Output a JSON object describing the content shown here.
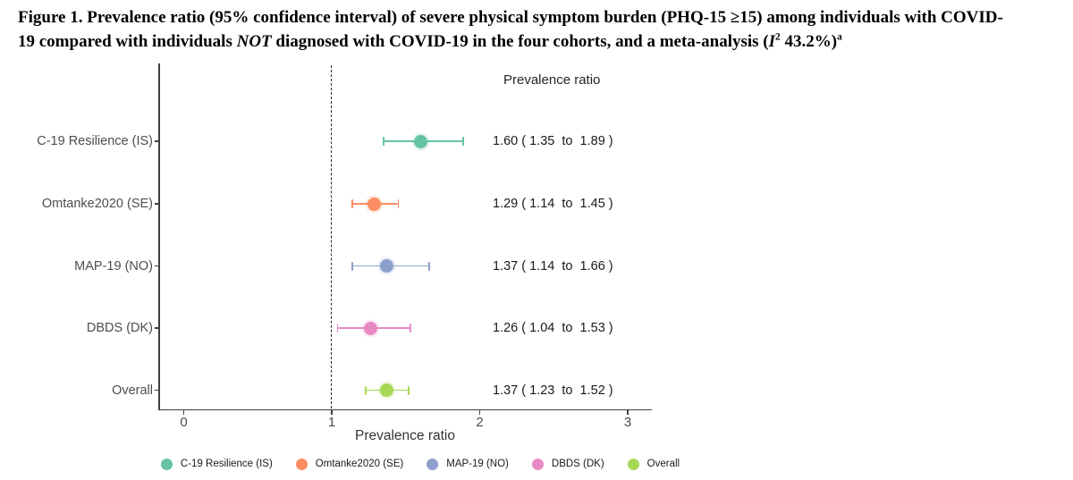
{
  "figure_title": {
    "segments": [
      {
        "text": "Figure 1. Prevalence ratio (95% confidence interval) of severe physical symptom burden (PHQ-15 ≥15) among individuals with COVID-"
      },
      {
        "br": true
      },
      {
        "text": "19 compared with individuals "
      },
      {
        "text": "NOT",
        "style": "italic"
      },
      {
        "text": " diagnosed with COVID-19 in the four cohorts, and a meta-analysis ("
      },
      {
        "text": "I",
        "style": "italic"
      },
      {
        "text": "2",
        "style": "sup"
      },
      {
        "text": " 43.2%)"
      },
      {
        "text": "a",
        "style": "sup"
      }
    ]
  },
  "chart_data": {
    "type": "forest",
    "orientation": "horizontal",
    "grid": false,
    "background": "#ffffff",
    "x_axis": {
      "label": "Prevalence ratio",
      "ticks": [
        {
          "value": 0,
          "label": "0"
        },
        {
          "value": 1,
          "label": "1"
        },
        {
          "value": 2,
          "label": "2"
        },
        {
          "value": 3,
          "label": "3"
        }
      ],
      "range": [
        -0.17,
        3.16
      ]
    },
    "reference_line_x": 1,
    "right_column_header": "Prevalence ratio",
    "rows": [
      {
        "label": "C-19 Resilience (IS)",
        "estimate": 1.6,
        "ci_low": 1.35,
        "ci_high": 1.89,
        "display": "1.60 ( 1.35  to  1.89 )",
        "color": "#66C2A5"
      },
      {
        "label": "Omtanke2020 (SE)",
        "estimate": 1.29,
        "ci_low": 1.14,
        "ci_high": 1.45,
        "display": "1.29 ( 1.14  to  1.45 )",
        "color": "#FC8D62"
      },
      {
        "label": "MAP-19 (NO)",
        "estimate": 1.37,
        "ci_low": 1.14,
        "ci_high": 1.66,
        "display": "1.37 ( 1.14  to  1.66 )",
        "color": "#8DA0CB"
      },
      {
        "label": "DBDS (DK)",
        "estimate": 1.26,
        "ci_low": 1.04,
        "ci_high": 1.53,
        "display": "1.26 ( 1.04  to  1.53 )",
        "color": "#E78AC3"
      },
      {
        "label": "Overall",
        "estimate": 1.37,
        "ci_low": 1.23,
        "ci_high": 1.52,
        "display": "1.37 ( 1.23  to  1.52 )",
        "color": "#A6D854"
      }
    ],
    "legend_position": "bottom",
    "legend": [
      {
        "label": "C-19 Resilience (IS)",
        "color": "#66C2A5"
      },
      {
        "label": "Omtanke2020 (SE)",
        "color": "#FC8D62"
      },
      {
        "label": "MAP-19 (NO)",
        "color": "#8DA0CB"
      },
      {
        "label": "DBDS (DK)",
        "color": "#E78AC3"
      },
      {
        "label": "Overall",
        "color": "#A6D854"
      }
    ]
  }
}
